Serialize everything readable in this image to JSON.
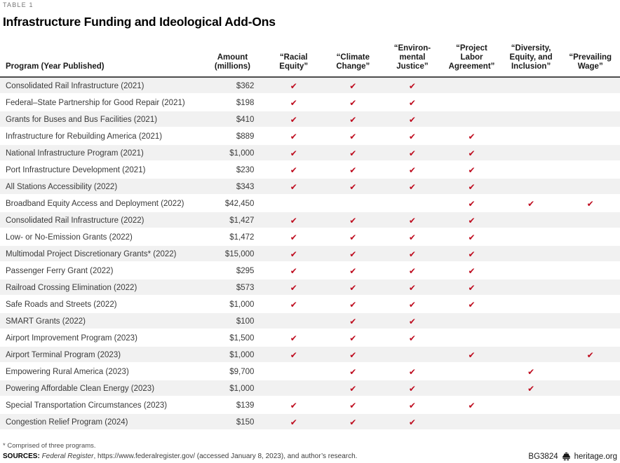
{
  "meta": {
    "kicker": "TABLE 1",
    "title": "Infrastructure Funding and Ideological Add-Ons"
  },
  "table": {
    "columns": {
      "program": "Program (Year Published)",
      "amount": "Amount\n(millions)",
      "checks": [
        "“Racial\nEquity”",
        "“Climate\nChange”",
        "“Environ-\nmental\nJustice”",
        "“Project\nLabor\nAgreement”",
        "“Diversity,\nEquity, and\nInclusion”",
        "“Prevailing\nWage”"
      ]
    },
    "check_mark": "✔",
    "rows": [
      {
        "program": "Consolidated Rail Infrastructure (2021)",
        "amount": "$362",
        "checks": [
          1,
          1,
          1,
          0,
          0,
          0
        ]
      },
      {
        "program": "Federal–State Partnership for Good Repair (2021)",
        "amount": "$198",
        "checks": [
          1,
          1,
          1,
          0,
          0,
          0
        ]
      },
      {
        "program": "Grants for Buses and Bus Facilities (2021)",
        "amount": "$410",
        "checks": [
          1,
          1,
          1,
          0,
          0,
          0
        ]
      },
      {
        "program": "Infrastructure for Rebuilding America (2021)",
        "amount": "$889",
        "checks": [
          1,
          1,
          1,
          1,
          0,
          0
        ]
      },
      {
        "program": "National Infrastructure Program (2021)",
        "amount": "$1,000",
        "checks": [
          1,
          1,
          1,
          1,
          0,
          0
        ]
      },
      {
        "program": "Port Infrastructure Development (2021)",
        "amount": "$230",
        "checks": [
          1,
          1,
          1,
          1,
          0,
          0
        ]
      },
      {
        "program": "All Stations Accessibility (2022)",
        "amount": "$343",
        "checks": [
          1,
          1,
          1,
          1,
          0,
          0
        ]
      },
      {
        "program": "Broadband Equity Access and Deployment (2022)",
        "amount": "$42,450",
        "checks": [
          0,
          0,
          0,
          1,
          1,
          1
        ]
      },
      {
        "program": "Consolidated Rail Infrastructure (2022)",
        "amount": "$1,427",
        "checks": [
          1,
          1,
          1,
          1,
          0,
          0
        ]
      },
      {
        "program": "Low- or No-Emission Grants (2022)",
        "amount": "$1,472",
        "checks": [
          1,
          1,
          1,
          1,
          0,
          0
        ]
      },
      {
        "program": "Multimodal Project Discretionary Grants* (2022)",
        "amount": "$15,000",
        "checks": [
          1,
          1,
          1,
          1,
          0,
          0
        ]
      },
      {
        "program": "Passenger Ferry Grant (2022)",
        "amount": "$295",
        "checks": [
          1,
          1,
          1,
          1,
          0,
          0
        ]
      },
      {
        "program": "Railroad Crossing Elimination (2022)",
        "amount": "$573",
        "checks": [
          1,
          1,
          1,
          1,
          0,
          0
        ]
      },
      {
        "program": "Safe Roads and Streets (2022)",
        "amount": "$1,000",
        "checks": [
          1,
          1,
          1,
          1,
          0,
          0
        ]
      },
      {
        "program": "SMART Grants (2022)",
        "amount": "$100",
        "checks": [
          0,
          1,
          1,
          0,
          0,
          0
        ]
      },
      {
        "program": "Airport Improvement Program (2023)",
        "amount": "$1,500",
        "checks": [
          1,
          1,
          1,
          0,
          0,
          0
        ]
      },
      {
        "program": "Airport Terminal Program (2023)",
        "amount": "$1,000",
        "checks": [
          1,
          1,
          0,
          1,
          0,
          1
        ]
      },
      {
        "program": "Empowering Rural America (2023)",
        "amount": "$9,700",
        "checks": [
          0,
          1,
          1,
          0,
          1,
          0
        ]
      },
      {
        "program": "Powering Affordable Clean Energy (2023)",
        "amount": "$1,000",
        "checks": [
          0,
          1,
          1,
          0,
          1,
          0
        ]
      },
      {
        "program": "Special Transportation Circumstances (2023)",
        "amount": "$139",
        "checks": [
          1,
          1,
          1,
          1,
          0,
          0
        ]
      },
      {
        "program": "Congestion Relief Program (2024)",
        "amount": "$150",
        "checks": [
          1,
          1,
          1,
          0,
          0,
          0
        ]
      }
    ]
  },
  "footer": {
    "footnote": "* Comprised of three programs.",
    "sources_label": "SOURCES:",
    "sources_italic": "Federal Register",
    "sources_rest": ", https://www.federalregister.gov/ (accessed January 8, 2023), and author’s research.",
    "doc_id": "BG3824",
    "site": "heritage.org"
  },
  "colors": {
    "check_red": "#BE0B1E",
    "row_stripe": "#F1F1F1",
    "header_rule": "#4D4D4D"
  }
}
